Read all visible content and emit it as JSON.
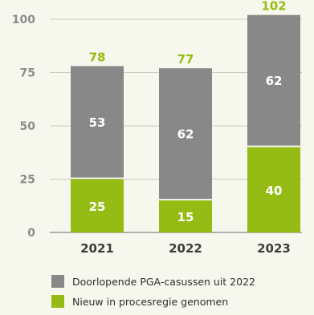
{
  "chart_data": {
    "type": "bar",
    "stacked": true,
    "categories": [
      "2021",
      "2022",
      "2023"
    ],
    "series": [
      {
        "name": "Nieuw in procesregie genomen",
        "color": "#95bc14",
        "values": [
          25,
          15,
          40
        ]
      },
      {
        "name": "Doorlopende PGA-casussen uit 2022",
        "color": "#888888",
        "values": [
          53,
          62,
          62
        ]
      }
    ],
    "totals": [
      78,
      77,
      102
    ],
    "total_color": "#95bc14",
    "yticks": [
      "0",
      "25",
      "50",
      "75",
      "100"
    ],
    "ylim": [
      0,
      105
    ],
    "grid": true,
    "legend_placement": "bottom",
    "legend": [
      {
        "label": "Doorlopende PGA-casussen uit 2022",
        "color": "#888888"
      },
      {
        "label": "Nieuw in procesregie genomen",
        "color": "#95bc14"
      }
    ]
  }
}
